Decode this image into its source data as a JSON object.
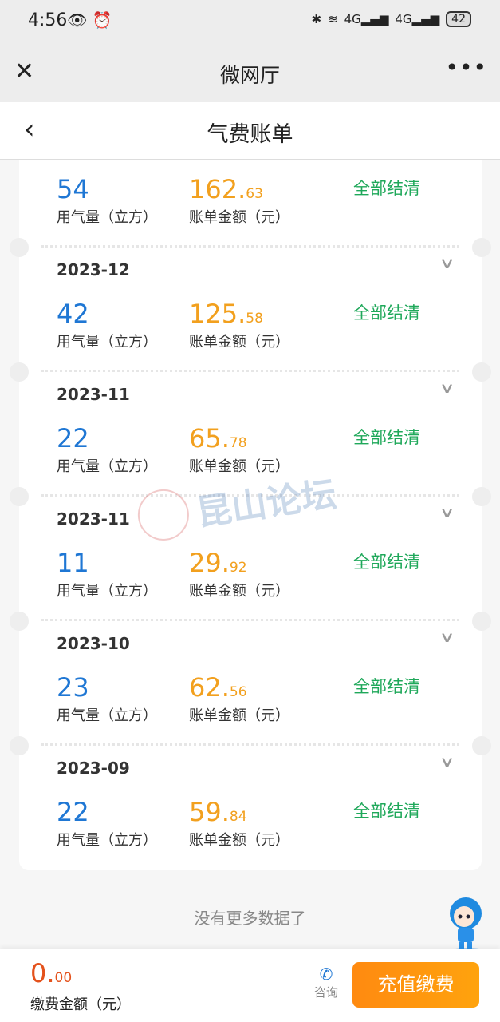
{
  "status_bar": {
    "time": "4:56",
    "battery": "42",
    "network": "4G"
  },
  "wechat_bar": {
    "title": "微网厅",
    "close_icon": "close-icon",
    "more_icon": "more-icon"
  },
  "nav": {
    "title": "气费账单",
    "back_icon": "back-icon"
  },
  "labels": {
    "usage": "用气量（立方）",
    "amount": "账单金额（元）",
    "status": "全部结清"
  },
  "bills": [
    {
      "month": "",
      "usage": "54",
      "amount_int": "162.",
      "amount_dec": "63",
      "status": "全部结清"
    },
    {
      "month": "2023-12",
      "usage": "42",
      "amount_int": "125.",
      "amount_dec": "58",
      "status": "全部结清"
    },
    {
      "month": "2023-11",
      "usage": "22",
      "amount_int": "65.",
      "amount_dec": "78",
      "status": "全部结清"
    },
    {
      "month": "2023-11",
      "usage": "11",
      "amount_int": "29.",
      "amount_dec": "92",
      "status": "全部结清"
    },
    {
      "month": "2023-10",
      "usage": "23",
      "amount_int": "62.",
      "amount_dec": "56",
      "status": "全部结清"
    },
    {
      "month": "2023-09",
      "usage": "22",
      "amount_int": "59.",
      "amount_dec": "84",
      "status": "全部结清"
    }
  ],
  "no_more": "没有更多数据了",
  "watermark": "昆山论坛",
  "footer": {
    "amount_int": "0.",
    "amount_dec": "00",
    "amount_label": "缴费金额（元）",
    "consult": "咨询",
    "charge_button": "充值缴费"
  },
  "colors": {
    "usage": "#1f77d4",
    "amount": "#f2a01e",
    "status": "#1fa85a",
    "button": "#ff9a10"
  }
}
